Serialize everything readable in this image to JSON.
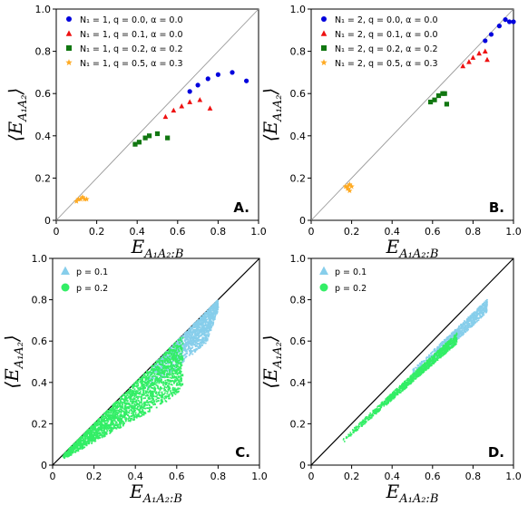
{
  "figure": {
    "xlabel": "E_{A1A2:B}",
    "ylabel": "⟨E_{A1A2}⟩",
    "colors": {
      "blue": "#0000dd",
      "red": "#ee1111",
      "green": "#117711",
      "orange": "#ffaa22",
      "skyblue": "#87ceeb",
      "lightgreen": "#33ee66"
    }
  },
  "chart_data": [
    {
      "type": "scatter",
      "panel_label": "A.",
      "xlim": [
        0,
        1.0
      ],
      "ylim": [
        0,
        1.0
      ],
      "xticks": [
        "0",
        "0.2",
        "0.4",
        "0.6",
        "0.8",
        "1.0"
      ],
      "yticks": [
        "0",
        "0.2",
        "0.4",
        "0.6",
        "0.8",
        "1.0"
      ],
      "legend_position": "top-left",
      "reference_line": "y = x",
      "series": [
        {
          "name": "N₁ = 1, q = 0.0, α = 0.0",
          "marker": "circle",
          "color": "#0000dd",
          "x": [
            0.66,
            0.7,
            0.75,
            0.8,
            0.87,
            0.94
          ],
          "y": [
            0.61,
            0.64,
            0.67,
            0.69,
            0.7,
            0.66
          ]
        },
        {
          "name": "N₁ = 1, q = 0.1, α = 0.0",
          "marker": "triangle",
          "color": "#ee1111",
          "x": [
            0.54,
            0.58,
            0.62,
            0.66,
            0.71,
            0.76
          ],
          "y": [
            0.49,
            0.52,
            0.54,
            0.56,
            0.57,
            0.53
          ]
        },
        {
          "name": "N₁ = 1, q = 0.2, α = 0.2",
          "marker": "square",
          "color": "#117711",
          "x": [
            0.39,
            0.41,
            0.44,
            0.46,
            0.5,
            0.55
          ],
          "y": [
            0.36,
            0.37,
            0.39,
            0.4,
            0.41,
            0.39
          ]
        },
        {
          "name": "N₁ = 1, q = 0.5, α = 0.3",
          "marker": "star",
          "color": "#ffaa22",
          "x": [
            0.1,
            0.11,
            0.12,
            0.13,
            0.14,
            0.15
          ],
          "y": [
            0.09,
            0.1,
            0.1,
            0.11,
            0.1,
            0.1
          ]
        }
      ]
    },
    {
      "type": "scatter",
      "panel_label": "B.",
      "xlim": [
        0,
        1.0
      ],
      "ylim": [
        0,
        1.0
      ],
      "xticks": [
        "0",
        "0.2",
        "0.4",
        "0.6",
        "0.8",
        "1.0"
      ],
      "yticks": [
        "0",
        "0.2",
        "0.4",
        "0.6",
        "0.8",
        "1.0"
      ],
      "legend_position": "top-left",
      "reference_line": "y = x",
      "series": [
        {
          "name": "N₁ = 2, q = 0.0, α = 0.0",
          "marker": "circle",
          "color": "#0000dd",
          "x": [
            0.86,
            0.89,
            0.93,
            0.96,
            0.98,
            1.0
          ],
          "y": [
            0.85,
            0.88,
            0.92,
            0.95,
            0.94,
            0.94
          ]
        },
        {
          "name": "N₁ = 2, q = 0.1, α = 0.0",
          "marker": "triangle",
          "color": "#ee1111",
          "x": [
            0.75,
            0.78,
            0.8,
            0.83,
            0.86,
            0.87
          ],
          "y": [
            0.73,
            0.75,
            0.77,
            0.79,
            0.8,
            0.76
          ]
        },
        {
          "name": "N₁ = 2, q = 0.2, α = 0.2",
          "marker": "square",
          "color": "#117711",
          "x": [
            0.59,
            0.61,
            0.63,
            0.65,
            0.66,
            0.67
          ],
          "y": [
            0.56,
            0.57,
            0.59,
            0.6,
            0.6,
            0.55
          ]
        },
        {
          "name": "N₁ = 2, q = 0.5, α = 0.3",
          "marker": "star",
          "color": "#ffaa22",
          "x": [
            0.17,
            0.18,
            0.19,
            0.2,
            0.18,
            0.19
          ],
          "y": [
            0.16,
            0.16,
            0.17,
            0.16,
            0.15,
            0.14
          ]
        }
      ]
    },
    {
      "type": "scatter",
      "panel_label": "C.",
      "xlim": [
        0,
        1.0
      ],
      "ylim": [
        0,
        1.0
      ],
      "xticks": [
        "0",
        "0.2",
        "0.4",
        "0.6",
        "0.8",
        "1.0"
      ],
      "yticks": [
        "0",
        "0.2",
        "0.4",
        "0.6",
        "0.8",
        "1.0"
      ],
      "legend_position": "top-left",
      "reference_line": "y = x",
      "series": [
        {
          "name": "p = 0.1",
          "marker": "triangle",
          "color": "#87ceeb",
          "x_range": [
            0.45,
            0.8
          ],
          "upper_edge": "y = x (to 0.80, 0.80)",
          "lower_edge": "~0.47 at x=0.60, 0.60 at x=0.75"
        },
        {
          "name": "p = 0.2",
          "marker": "circle",
          "color": "#33ee66",
          "x_range": [
            0.05,
            0.63
          ],
          "upper_edge": "y = x",
          "lower_edge": "~0.55x ramp to 0.35 at x=0.63"
        }
      ]
    },
    {
      "type": "scatter",
      "panel_label": "D.",
      "xlim": [
        0,
        1.0
      ],
      "ylim": [
        0,
        1.0
      ],
      "xticks": [
        "0",
        "0.2",
        "0.4",
        "0.6",
        "0.8",
        "1.0"
      ],
      "yticks": [
        "0",
        "0.2",
        "0.4",
        "0.6",
        "0.8",
        "1.0"
      ],
      "legend_position": "top-left",
      "reference_line": "y = x",
      "series": [
        {
          "name": "p = 0.1",
          "marker": "triangle",
          "color": "#87ceeb",
          "x_range": [
            0.5,
            0.87
          ],
          "band": "y ≈ 0.92x − 0.03, narrow"
        },
        {
          "name": "p = 0.2",
          "marker": "circle",
          "color": "#33ee66",
          "x_range": [
            0.15,
            0.72
          ],
          "band": "y ≈ 0.88x − 0.02, narrow"
        }
      ]
    }
  ]
}
